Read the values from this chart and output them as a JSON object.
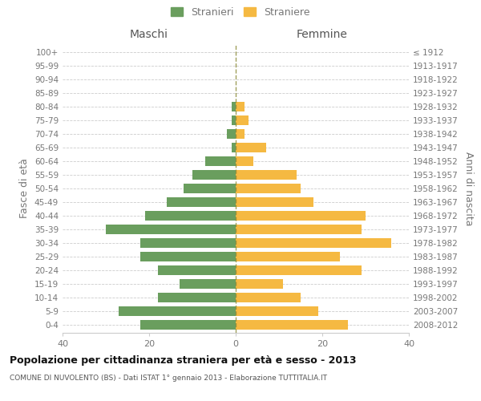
{
  "age_groups": [
    "0-4",
    "5-9",
    "10-14",
    "15-19",
    "20-24",
    "25-29",
    "30-34",
    "35-39",
    "40-44",
    "45-49",
    "50-54",
    "55-59",
    "60-64",
    "65-69",
    "70-74",
    "75-79",
    "80-84",
    "85-89",
    "90-94",
    "95-99",
    "100+"
  ],
  "birth_years": [
    "2008-2012",
    "2003-2007",
    "1998-2002",
    "1993-1997",
    "1988-1992",
    "1983-1987",
    "1978-1982",
    "1973-1977",
    "1968-1972",
    "1963-1967",
    "1958-1962",
    "1953-1957",
    "1948-1952",
    "1943-1947",
    "1938-1942",
    "1933-1937",
    "1928-1932",
    "1923-1927",
    "1918-1922",
    "1913-1917",
    "≤ 1912"
  ],
  "maschi": [
    22,
    27,
    18,
    13,
    18,
    22,
    22,
    30,
    21,
    16,
    12,
    10,
    7,
    1,
    2,
    1,
    1,
    0,
    0,
    0,
    0
  ],
  "femmine": [
    26,
    19,
    15,
    11,
    29,
    24,
    36,
    29,
    30,
    18,
    15,
    14,
    4,
    7,
    2,
    3,
    2,
    0,
    0,
    0,
    0
  ],
  "maschi_color": "#6a9e5e",
  "femmine_color": "#f5b942",
  "title": "Popolazione per cittadinanza straniera per età e sesso - 2013",
  "subtitle": "COMUNE DI NUVOLENTO (BS) - Dati ISTAT 1° gennaio 2013 - Elaborazione TUTTITALIA.IT",
  "xlabel_left": "Maschi",
  "xlabel_right": "Femmine",
  "ylabel_left": "Fasce di età",
  "ylabel_right": "Anni di nascita",
  "legend_maschi": "Stranieri",
  "legend_femmine": "Straniere",
  "xlim": 40,
  "background_color": "#ffffff",
  "grid_color": "#cccccc",
  "bar_height": 0.72,
  "label_color": "#777777"
}
